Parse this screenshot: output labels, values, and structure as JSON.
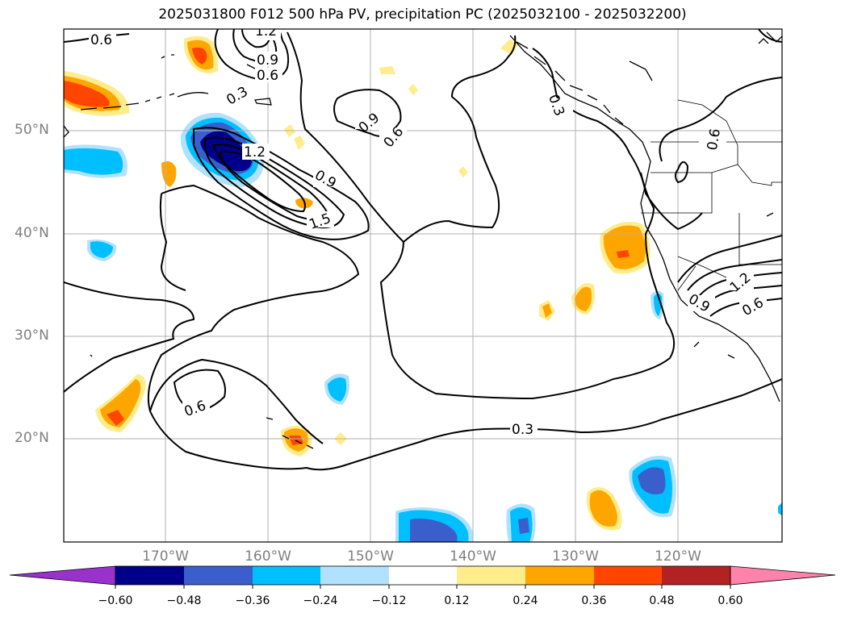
{
  "title": "2025031800 F012 500 hPa PV, precipitation PC (2025032100 - 2025032200)",
  "lat_labels": [
    "50°N",
    "40°N",
    "30°N",
    "20°N"
  ],
  "lon_labels": [
    "170°W",
    "160°W",
    "150°W",
    "140°W",
    "130°W",
    "120°W"
  ],
  "contour_labels": [
    "0.6",
    "1.2",
    "0.9",
    "0.6",
    "0.3",
    "0.9",
    "0.6",
    "1.2",
    "0.9",
    "1.5",
    "0.3",
    "0.6",
    "0.6",
    "1.2",
    "0.9",
    "0.6",
    "0.6",
    "0.3"
  ],
  "colorbar": {
    "tick_labels": [
      "−0.60",
      "−0.48",
      "−0.36",
      "−0.24",
      "−0.12",
      "0.12",
      "0.24",
      "0.36",
      "0.48",
      "0.60"
    ],
    "colors": [
      "#9932cc",
      "#00008b",
      "#3a5fcd",
      "#00bfff",
      "#b0e2ff",
      "#ffffff",
      "#ffec8b",
      "#ffa500",
      "#ff4500",
      "#b22222",
      "#ff82ab"
    ]
  },
  "fill_colors": {
    "dark_blue": "#00008b",
    "blue": "#3a5fcd",
    "sky": "#00bfff",
    "light_blue": "#b0e2ff",
    "yellow": "#ffec8b",
    "orange": "#ffa500",
    "red_orange": "#ff4500"
  }
}
